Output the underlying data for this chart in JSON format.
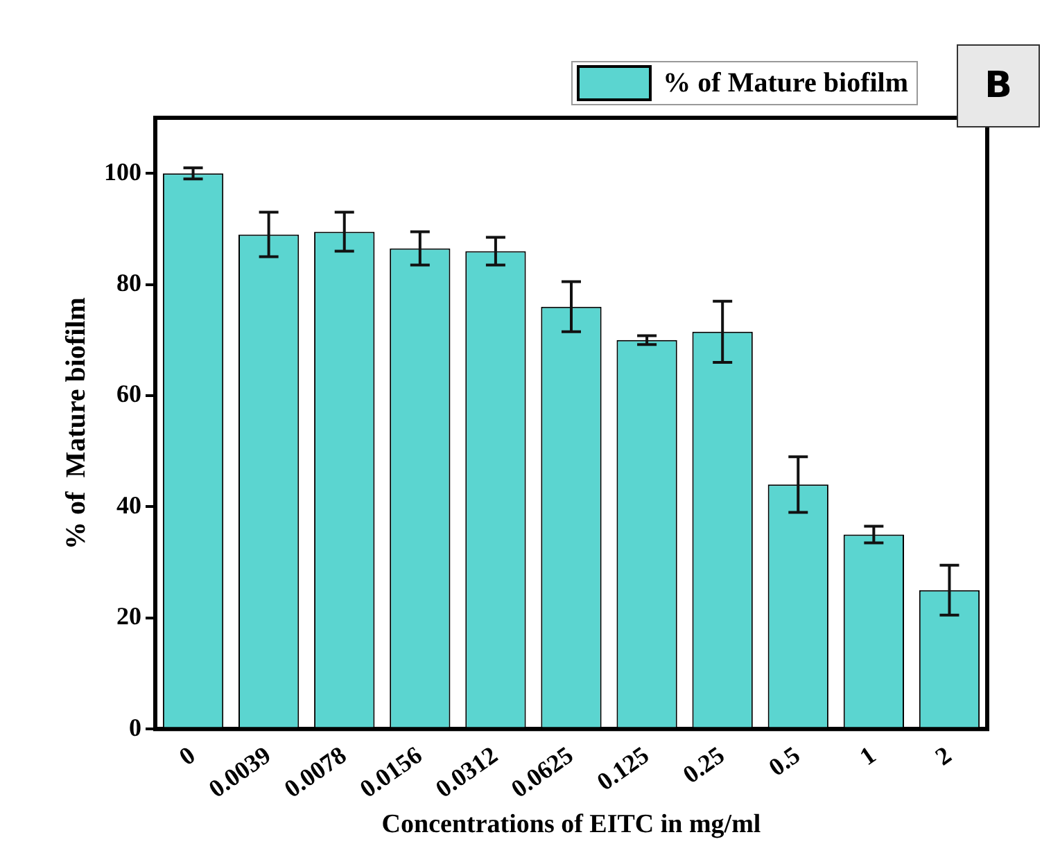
{
  "chart_data": {
    "type": "bar",
    "xlabel": "Concentrations of EITC in mg/ml",
    "ylabel": "% of  Mature biofilm",
    "categories": [
      "0",
      "0.0039",
      "0.0078",
      "0.0156",
      "0.0312",
      "0.0625",
      "0.125",
      "0.25",
      "0.5",
      "1",
      "2"
    ],
    "series": [
      {
        "name": "% of Mature biofilm",
        "color": "#5bd5d0",
        "values": [
          100,
          89,
          89.5,
          86.5,
          86,
          76,
          70,
          71.5,
          44,
          35,
          25
        ],
        "errors": [
          1,
          4,
          3.5,
          3,
          2.5,
          4.5,
          0.8,
          5.5,
          5,
          1.5,
          4.5
        ]
      }
    ],
    "ylim": [
      0,
      110
    ],
    "yticks": [
      0,
      20,
      40,
      60,
      80,
      100
    ],
    "grid": false,
    "legend": "top right",
    "annotations": [
      "B"
    ]
  }
}
